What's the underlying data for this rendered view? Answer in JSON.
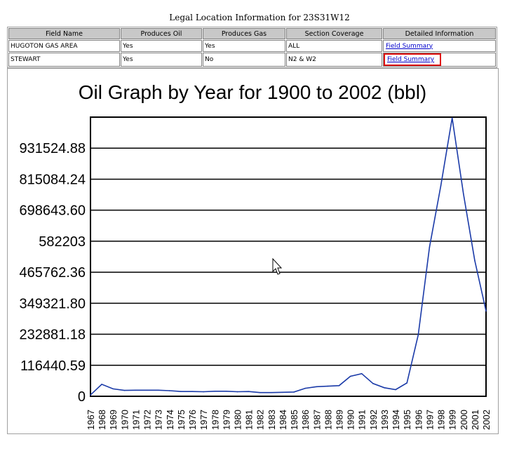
{
  "page_title": "Legal Location Information for 23S31W12",
  "table": {
    "headers": [
      "Field Name",
      "Produces Oil",
      "Produces Gas",
      "Section Coverage",
      "Detailed Information"
    ],
    "rows": [
      {
        "field": "HUGOTON GAS AREA",
        "oil": "Yes",
        "gas": "Yes",
        "coverage": "ALL",
        "link": "Field Summary"
      },
      {
        "field": "STEWART",
        "oil": "Yes",
        "gas": "No",
        "coverage": "N2 & W2",
        "link": "Field Summary"
      }
    ]
  },
  "colors": {
    "line": "#1a3aa8",
    "highlight": "#e01010",
    "link": "#0000cc"
  },
  "chart_data": {
    "type": "line",
    "title": "Oil Graph by Year for 1900 to 2002 (bbl)",
    "x": [
      "1967",
      "1968",
      "1969",
      "1970",
      "1971",
      "1972",
      "1973",
      "1974",
      "1975",
      "1976",
      "1977",
      "1978",
      "1979",
      "1980",
      "1981",
      "1982",
      "1983",
      "1984",
      "1985",
      "1986",
      "1987",
      "1988",
      "1989",
      "1990",
      "1991",
      "1992",
      "1993",
      "1994",
      "1995",
      "1996",
      "1997",
      "1998",
      "1999",
      "2000",
      "2001",
      "2002"
    ],
    "y_tick_labels": [
      "0",
      "116440.59",
      "232881.18",
      "349321.80",
      "465762.36",
      "582203",
      "698643.60",
      "815084.24",
      "931524.88"
    ],
    "ylim": [
      0,
      1047965.49
    ],
    "grid": true,
    "series": [
      {
        "values": [
          5000,
          45000,
          28000,
          22000,
          23000,
          23000,
          23000,
          21000,
          18000,
          18000,
          17000,
          19000,
          19000,
          17000,
          18000,
          14000,
          14000,
          15000,
          16000,
          30000,
          36000,
          38000,
          40000,
          75000,
          85000,
          48000,
          32000,
          25000,
          50000,
          230000,
          560000,
          790000,
          1045000,
          760000,
          510000,
          320000
        ]
      }
    ]
  }
}
